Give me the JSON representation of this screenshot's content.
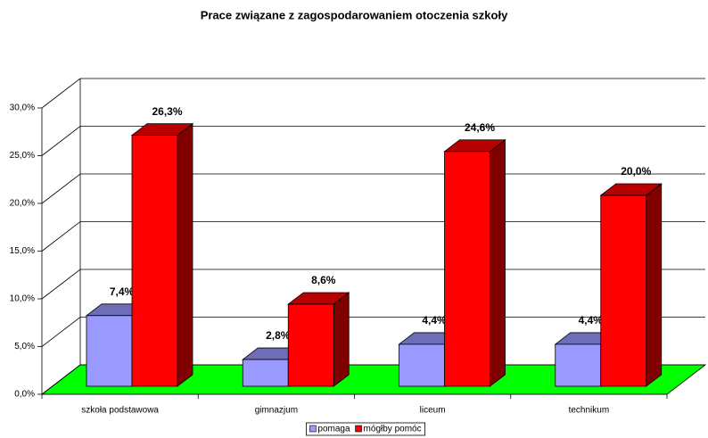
{
  "chart_data": {
    "type": "bar3d",
    "title": "Prace związane z zagospodarowaniem otoczenia szkoły",
    "categories": [
      "szkoła podstawowa",
      "gimnazjum",
      "liceum",
      "technikum"
    ],
    "series": [
      {
        "name": "pomaga",
        "color": "#9999ff",
        "values": [
          7.4,
          2.8,
          4.4,
          4.4
        ],
        "value_labels": [
          "7,4%",
          "2,8%",
          "4,4%",
          "4,4%"
        ]
      },
      {
        "name": "mógłby pomóc",
        "color": "#ff0000",
        "values": [
          26.3,
          8.6,
          24.6,
          20.0
        ],
        "value_labels": [
          "26,3%",
          "8,6%",
          "24,6%",
          "20,0%"
        ]
      }
    ],
    "ylim": [
      0,
      30
    ],
    "yticks": [
      {
        "value": 0,
        "label": "0,0%"
      },
      {
        "value": 5,
        "label": "5,0%"
      },
      {
        "value": 10,
        "label": "10,0%"
      },
      {
        "value": 15,
        "label": "15,0%"
      },
      {
        "value": 20,
        "label": "20,0%"
      },
      {
        "value": 25,
        "label": "25,0%"
      },
      {
        "value": 30,
        "label": "30,0%"
      }
    ],
    "grid": true,
    "floor_color": "#00ff00",
    "legend": "bottom"
  }
}
